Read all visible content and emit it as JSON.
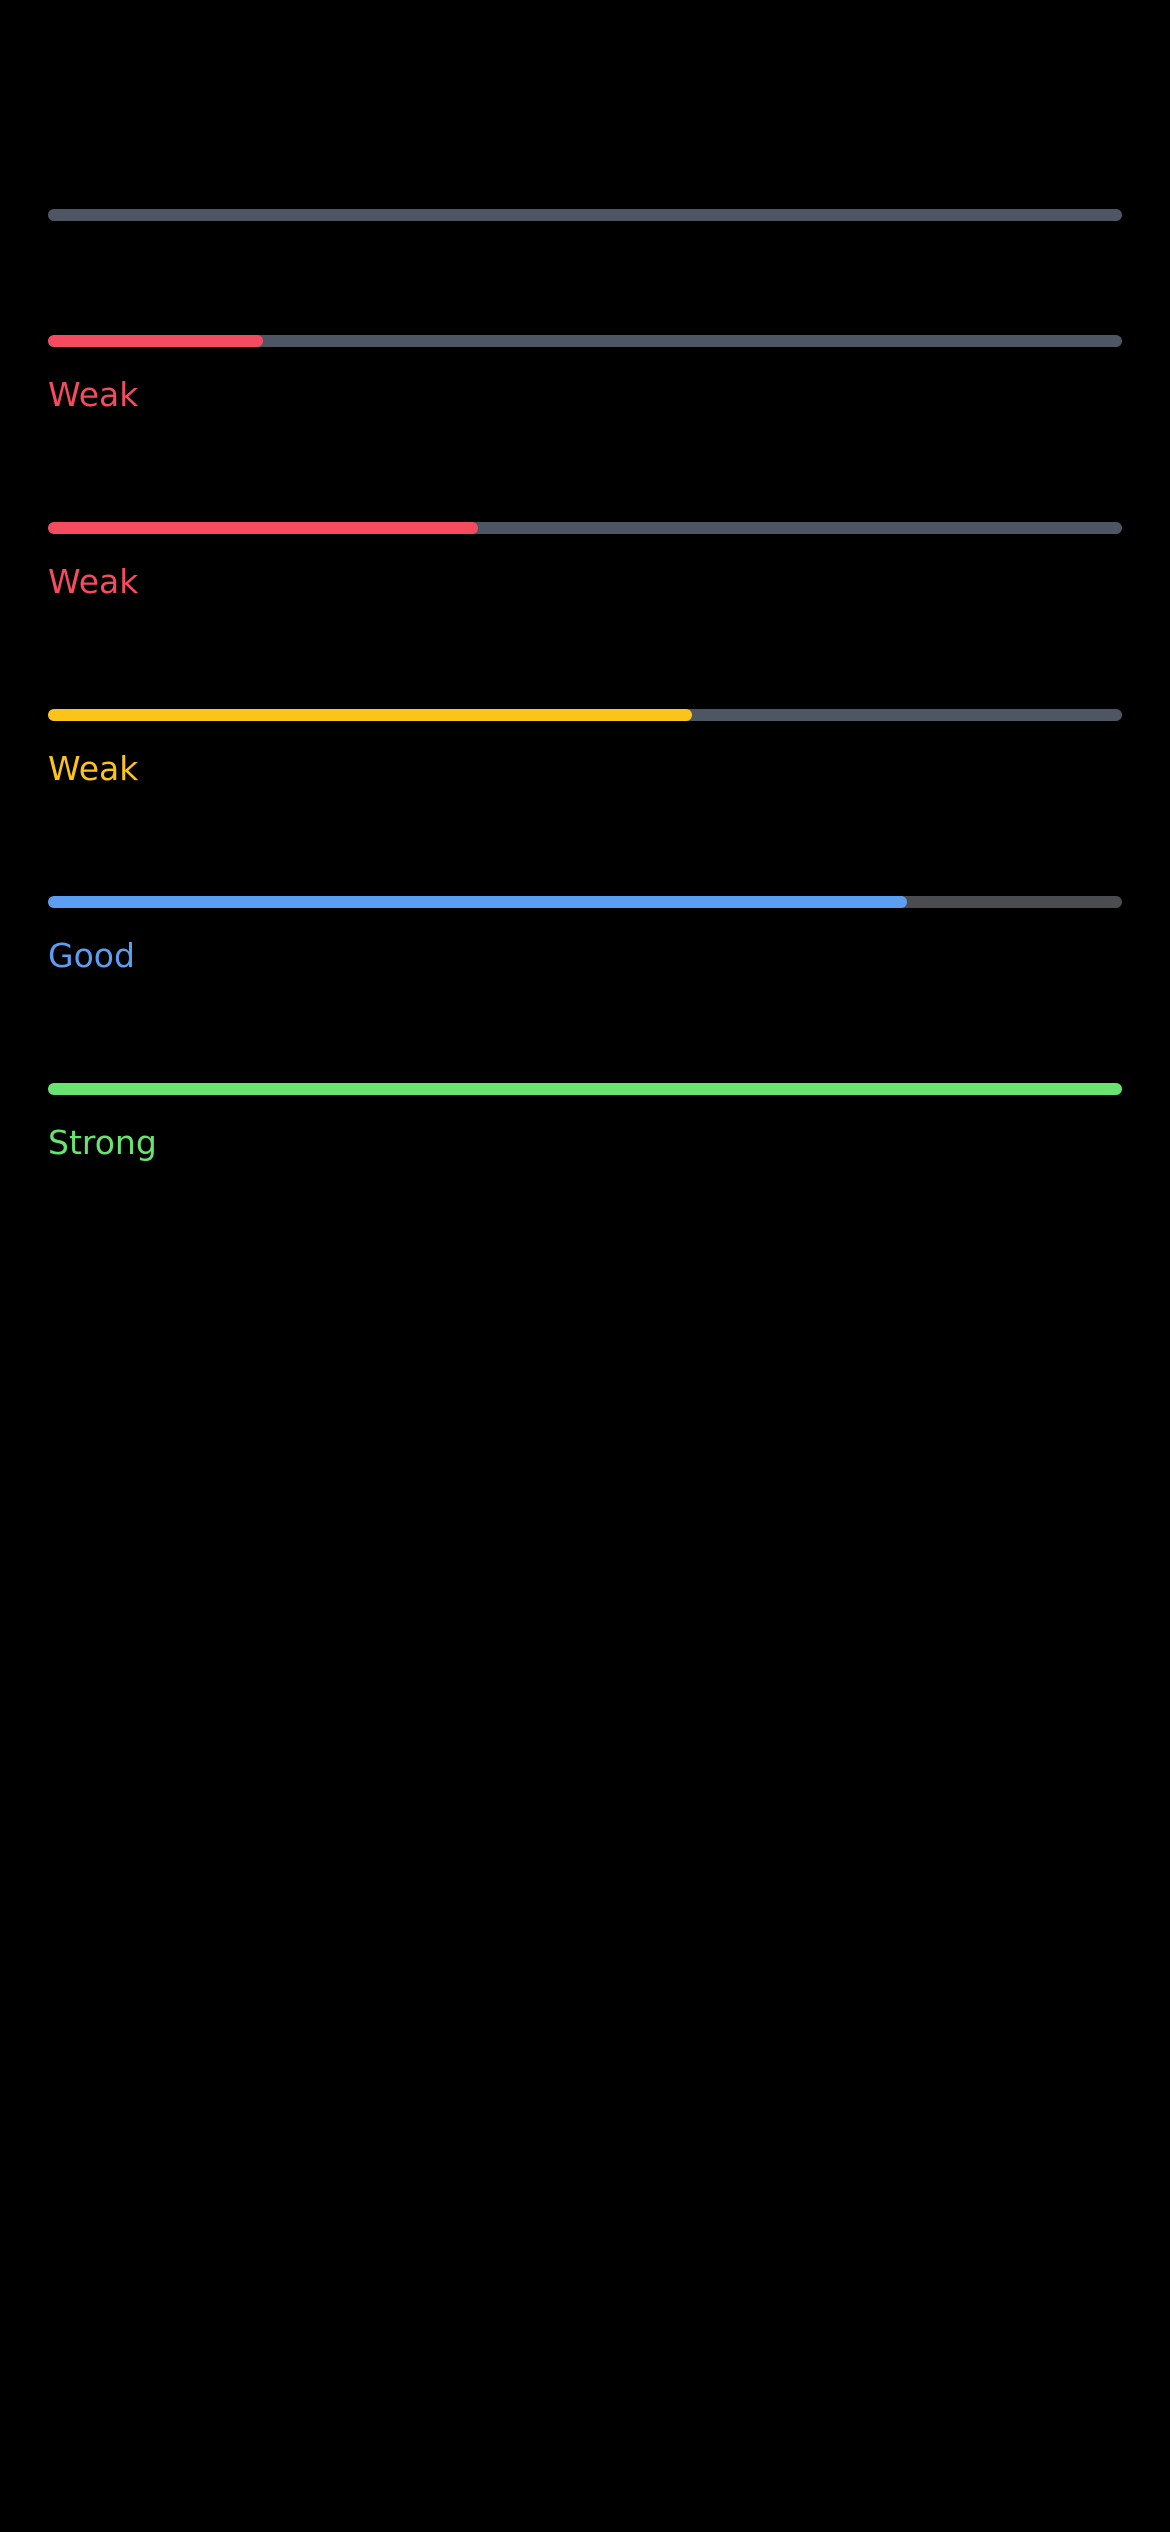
{
  "colors": {
    "background": "#000000",
    "track": "#4f5663",
    "track_good": "#4b4c50",
    "weak_red": "#f44b5f",
    "fair_yellow": "#fcc419",
    "good_blue": "#5c9ff2",
    "strong_green": "#69e36f"
  },
  "meters": [
    {
      "level": 0,
      "label": "",
      "fill_color": "#f44b5f",
      "track_color": "#4f5663"
    },
    {
      "level": 0.2,
      "label": "Weak",
      "fill_color": "#f44b5f",
      "track_color": "#4f5663"
    },
    {
      "level": 0.4,
      "label": "Weak",
      "fill_color": "#f44b5f",
      "track_color": "#4f5663"
    },
    {
      "level": 0.6,
      "label": "Weak",
      "fill_color": "#fcc419",
      "track_color": "#4f5663"
    },
    {
      "level": 0.8,
      "label": "Good",
      "fill_color": "#5c9ff2",
      "track_color": "#4b4c50"
    },
    {
      "level": 1.0,
      "label": "Strong",
      "fill_color": "#69e36f",
      "track_color": "#4f5663"
    }
  ]
}
